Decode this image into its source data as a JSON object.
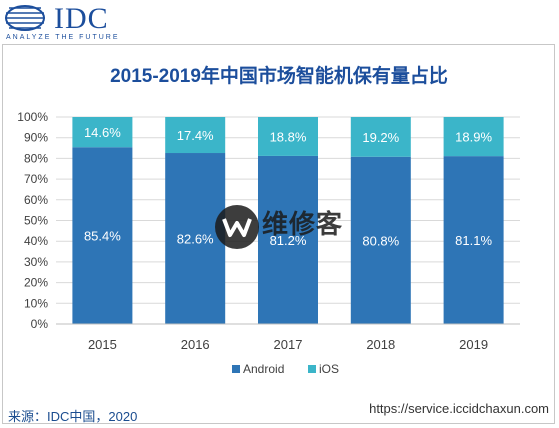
{
  "brand": {
    "name": "IDC",
    "tagline": "ANALYZE THE FUTURE"
  },
  "chart_data": {
    "type": "bar",
    "stacked": true,
    "title": "2015-2019年中国市场智能机保有量占比",
    "categories": [
      "2015",
      "2016",
      "2017",
      "2018",
      "2019"
    ],
    "series": [
      {
        "name": "Android",
        "color": "#2e75b6",
        "values": [
          85.4,
          82.6,
          81.2,
          80.8,
          81.1
        ],
        "labels": [
          "85.4%",
          "82.6%",
          "81.2%",
          "80.8%",
          "81.1%"
        ]
      },
      {
        "name": "iOS",
        "color": "#3bb5c9",
        "values": [
          14.6,
          17.4,
          18.8,
          19.2,
          18.9
        ],
        "labels": [
          "14.6%",
          "17.4%",
          "18.8%",
          "19.2%",
          "18.9%"
        ]
      }
    ],
    "yticks": [
      "0%",
      "10%",
      "20%",
      "30%",
      "40%",
      "50%",
      "60%",
      "70%",
      "80%",
      "90%",
      "100%"
    ],
    "ylim": [
      0,
      100
    ],
    "legend_position": "bottom",
    "grid": true
  },
  "source": "来源：IDC中国，2020",
  "watermark": {
    "text": "维修客",
    "url": "https://service.iccidchaxun.com"
  }
}
